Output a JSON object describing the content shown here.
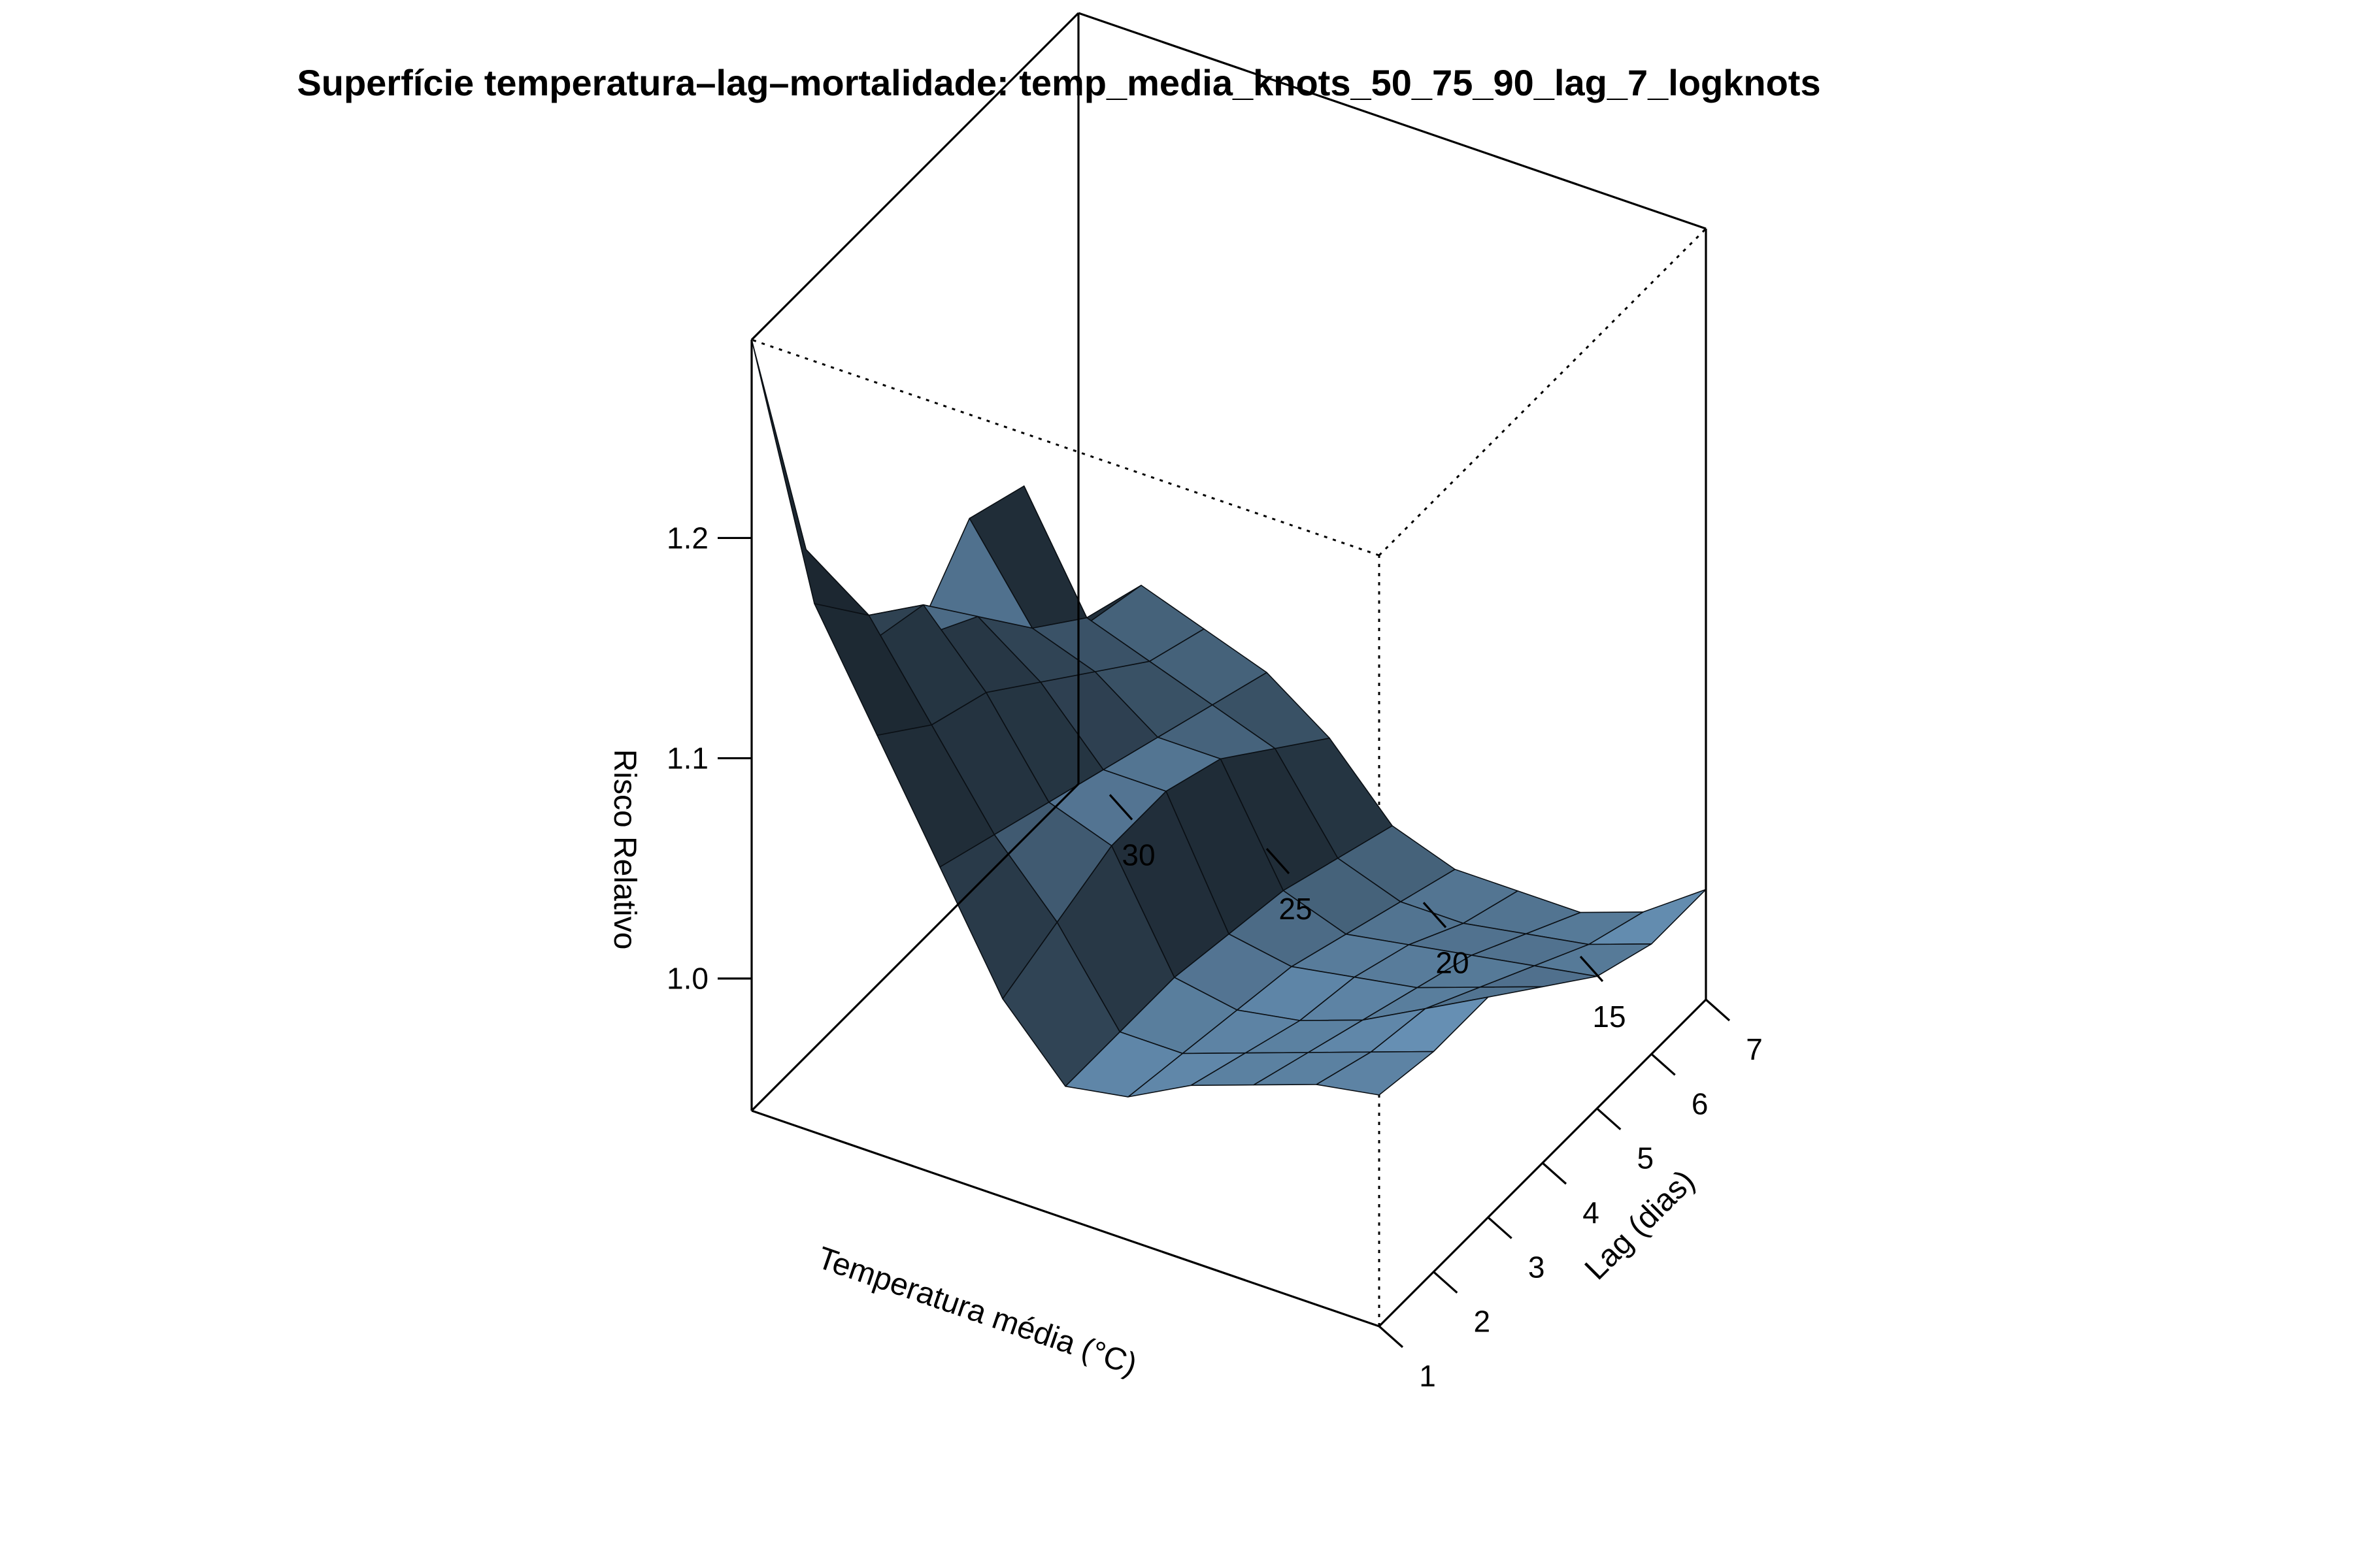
{
  "chart_data": {
    "type": "surface3d",
    "title": "Superfície temperatura–lag–mortalidade: temp_media_knots_50_75_90_lag_7_logknots",
    "xlabel": "Temperatura média (°C)",
    "ylabel": "Lag (dias)",
    "zlabel": "Risco Relativo",
    "x_range": [
      11,
      31
    ],
    "y_range": [
      1,
      7
    ],
    "z_range": [
      0.94,
      1.29
    ],
    "x_ticks": [
      30,
      25,
      20,
      15
    ],
    "y_ticks": [
      1,
      2,
      3,
      4,
      5,
      6,
      7
    ],
    "z_ticks": [
      1.0,
      1.1,
      1.2
    ],
    "z_tick_labels": [
      "1.0",
      "1.1",
      "1.2"
    ],
    "view": {
      "theta_deg": 140,
      "phi_deg": 25
    },
    "surface_color": "#7fb3e0",
    "grid_x": [
      11,
      13,
      15,
      17,
      19,
      21,
      23,
      25,
      27,
      29,
      31
    ],
    "grid_y": [
      1,
      2,
      3,
      4,
      5,
      6,
      7
    ],
    "z_values": [
      [
        1.045,
        1.04,
        1.04,
        1.02,
        1.0,
        0.99,
        0.99
      ],
      [
        1.04,
        1.03,
        1.025,
        1.01,
        0.995,
        0.98,
        0.97
      ],
      [
        1.03,
        1.02,
        1.01,
        1.0,
        0.99,
        0.975,
        0.96
      ],
      [
        1.02,
        1.01,
        1.0,
        0.995,
        0.985,
        0.97,
        0.96
      ],
      [
        1.005,
        1.0,
        0.995,
        0.99,
        0.98,
        0.97,
        0.96
      ],
      [
        1.0,
        1.0,
        1.0,
        0.995,
        0.99,
        0.98,
        0.97
      ],
      [
        1.03,
        1.04,
        1.05,
        1.05,
        1.04,
        1.02,
        1.0
      ],
      [
        1.08,
        1.07,
        1.06,
        1.05,
        1.04,
        1.03,
        1.02
      ],
      [
        1.13,
        1.11,
        1.1,
        1.08,
        1.06,
        1.04,
        1.03
      ],
      [
        1.18,
        1.15,
        1.13,
        1.1,
        1.07,
        1.05,
        1.04
      ],
      [
        1.29,
        1.17,
        1.1,
        1.08,
        1.11,
        1.1,
        1.01
      ]
    ]
  }
}
